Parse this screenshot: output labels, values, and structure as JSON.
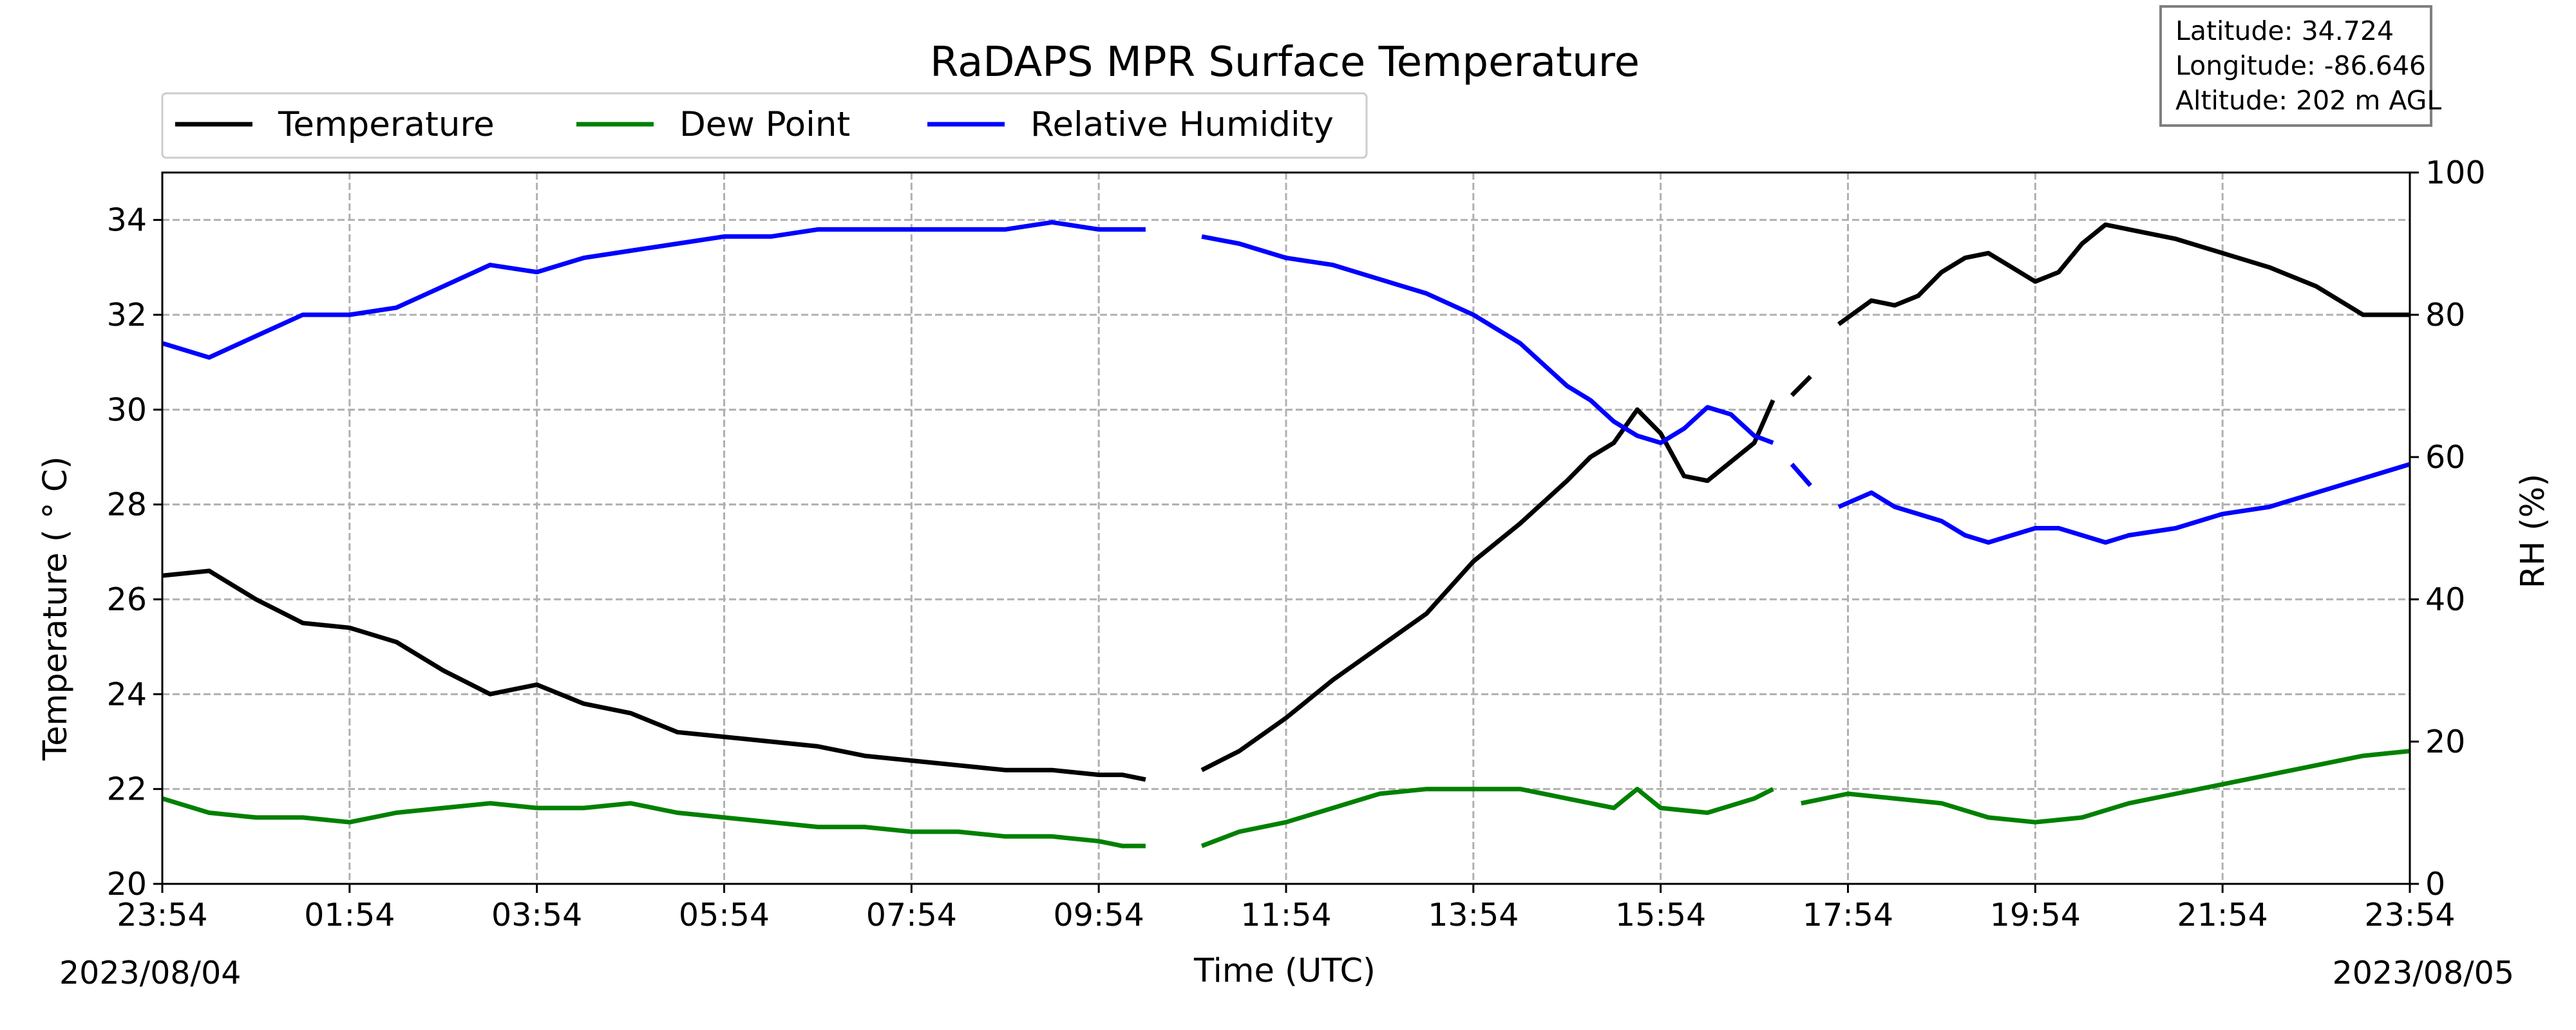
{
  "chart_data": {
    "type": "line",
    "title": "RaDAPS MPR Surface Temperature",
    "xlabel": "Time (UTC)",
    "ylabel_left": "Temperature ($^\\circ$C)",
    "ylabel_left_display": "Temperature ( ° C)",
    "ylabel_right": "RH (%)",
    "x_ticks": [
      "23:54",
      "01:54",
      "03:54",
      "05:54",
      "07:54",
      "09:54",
      "11:54",
      "13:54",
      "15:54",
      "17:54",
      "19:54",
      "21:54",
      "23:54"
    ],
    "x_range_hours": [
      0,
      24
    ],
    "start_date": "2023/08/04",
    "end_date": "2023/08/05",
    "ylim_left": [
      20,
      35
    ],
    "yticks_left": [
      20,
      22,
      24,
      26,
      28,
      30,
      32,
      34
    ],
    "ylim_right": [
      0,
      100
    ],
    "yticks_right": [
      0,
      20,
      40,
      60,
      80,
      100
    ],
    "grid": true,
    "legend_placement": "top-left",
    "info_box": {
      "latitude": "Latitude: 34.724",
      "longitude": "Longitude: -86.646",
      "altitude": "Altitude: 202 m AGL"
    },
    "series": [
      {
        "name": "Temperature",
        "axis": "left",
        "color": "#000000",
        "points": [
          [
            0,
            26.5
          ],
          [
            0.5,
            26.6
          ],
          [
            1,
            26.0
          ],
          [
            1.5,
            25.5
          ],
          [
            2,
            25.4
          ],
          [
            2.5,
            25.1
          ],
          [
            3,
            24.5
          ],
          [
            3.5,
            24.0
          ],
          [
            4,
            24.2
          ],
          [
            4.5,
            23.8
          ],
          [
            5,
            23.6
          ],
          [
            5.5,
            23.2
          ],
          [
            6,
            23.1
          ],
          [
            6.5,
            23.0
          ],
          [
            7,
            22.9
          ],
          [
            7.5,
            22.7
          ],
          [
            8,
            22.6
          ],
          [
            8.5,
            22.5
          ],
          [
            9,
            22.4
          ],
          [
            9.5,
            22.4
          ],
          [
            10,
            22.3
          ],
          [
            10.25,
            22.3
          ],
          [
            10.5,
            22.2
          ],
          null,
          [
            11.1,
            22.4
          ],
          [
            11.5,
            22.8
          ],
          [
            12,
            23.5
          ],
          [
            12.5,
            24.3
          ],
          [
            13,
            25.0
          ],
          [
            13.5,
            25.7
          ],
          [
            14,
            26.8
          ],
          [
            14.5,
            27.6
          ],
          [
            15,
            28.5
          ],
          [
            15.25,
            29.0
          ],
          [
            15.5,
            29.3
          ],
          [
            15.75,
            30.0
          ],
          [
            16,
            29.5
          ],
          [
            16.25,
            28.6
          ],
          [
            16.5,
            28.5
          ],
          [
            16.75,
            28.9
          ],
          [
            17,
            29.3
          ],
          [
            17.2,
            30.2
          ],
          null,
          [
            17.4,
            30.3
          ],
          [
            17.6,
            30.7
          ],
          null,
          [
            17.9,
            31.8
          ],
          [
            18.25,
            32.3
          ],
          [
            18.5,
            32.2
          ],
          [
            18.75,
            32.4
          ],
          [
            19,
            32.9
          ],
          [
            19.25,
            33.2
          ],
          [
            19.5,
            33.3
          ],
          [
            19.75,
            33.0
          ],
          [
            20,
            32.7
          ],
          [
            20.25,
            32.9
          ],
          [
            20.5,
            33.5
          ],
          [
            20.75,
            33.9
          ],
          [
            21,
            33.8
          ],
          [
            21.5,
            33.6
          ],
          [
            22,
            33.3
          ],
          [
            22.5,
            33.0
          ],
          [
            23,
            32.6
          ],
          [
            23.5,
            32.0
          ],
          [
            24,
            32.0
          ]
        ]
      },
      {
        "name": "Dew Point",
        "axis": "left",
        "color": "#008000",
        "points": [
          [
            0,
            21.8
          ],
          [
            0.5,
            21.5
          ],
          [
            1,
            21.4
          ],
          [
            1.5,
            21.4
          ],
          [
            2,
            21.3
          ],
          [
            2.5,
            21.5
          ],
          [
            3,
            21.6
          ],
          [
            3.5,
            21.7
          ],
          [
            4,
            21.6
          ],
          [
            4.5,
            21.6
          ],
          [
            5,
            21.7
          ],
          [
            5.5,
            21.5
          ],
          [
            6,
            21.4
          ],
          [
            6.5,
            21.3
          ],
          [
            7,
            21.2
          ],
          [
            7.5,
            21.2
          ],
          [
            8,
            21.1
          ],
          [
            8.5,
            21.1
          ],
          [
            9,
            21.0
          ],
          [
            9.5,
            21.0
          ],
          [
            10,
            20.9
          ],
          [
            10.25,
            20.8
          ],
          [
            10.5,
            20.8
          ],
          null,
          [
            11.1,
            20.8
          ],
          [
            11.5,
            21.1
          ],
          [
            12,
            21.3
          ],
          [
            12.5,
            21.6
          ],
          [
            13,
            21.9
          ],
          [
            13.5,
            22.0
          ],
          [
            14,
            22.0
          ],
          [
            14.5,
            22.0
          ],
          [
            15,
            21.8
          ],
          [
            15.5,
            21.6
          ],
          [
            15.75,
            22.0
          ],
          [
            16,
            21.6
          ],
          [
            16.5,
            21.5
          ],
          [
            17,
            21.8
          ],
          [
            17.2,
            22.0
          ],
          null,
          [
            17.5,
            21.7
          ],
          [
            18,
            21.9
          ],
          [
            18.5,
            21.8
          ],
          [
            19,
            21.7
          ],
          [
            19.5,
            21.4
          ],
          [
            20,
            21.3
          ],
          [
            20.5,
            21.4
          ],
          [
            21,
            21.7
          ],
          [
            21.5,
            21.9
          ],
          [
            22,
            22.1
          ],
          [
            22.5,
            22.3
          ],
          [
            23,
            22.5
          ],
          [
            23.5,
            22.7
          ],
          [
            24,
            22.8
          ]
        ]
      },
      {
        "name": "Relative Humidity",
        "axis": "right",
        "color": "#0000ff",
        "points": [
          [
            0,
            76
          ],
          [
            0.5,
            74
          ],
          [
            1,
            77
          ],
          [
            1.5,
            80
          ],
          [
            2,
            80
          ],
          [
            2.5,
            81
          ],
          [
            3,
            84
          ],
          [
            3.5,
            87
          ],
          [
            4,
            86
          ],
          [
            4.5,
            88
          ],
          [
            5,
            89
          ],
          [
            5.5,
            90
          ],
          [
            6,
            91
          ],
          [
            6.5,
            91
          ],
          [
            7,
            92
          ],
          [
            7.5,
            92
          ],
          [
            8,
            92
          ],
          [
            8.5,
            92
          ],
          [
            9,
            92
          ],
          [
            9.5,
            93
          ],
          [
            10,
            92
          ],
          [
            10.25,
            92
          ],
          [
            10.5,
            92
          ],
          null,
          [
            11.1,
            91
          ],
          [
            11.5,
            90
          ],
          [
            12,
            88
          ],
          [
            12.5,
            87
          ],
          [
            13,
            85
          ],
          [
            13.5,
            83
          ],
          [
            14,
            80
          ],
          [
            14.5,
            76
          ],
          [
            15,
            70
          ],
          [
            15.25,
            68
          ],
          [
            15.5,
            65
          ],
          [
            15.75,
            63
          ],
          [
            16,
            62
          ],
          [
            16.25,
            64
          ],
          [
            16.5,
            67
          ],
          [
            16.75,
            66
          ],
          [
            17,
            63
          ],
          [
            17.2,
            62
          ],
          null,
          [
            17.4,
            59
          ],
          [
            17.6,
            56
          ],
          null,
          [
            17.9,
            53
          ],
          [
            18.25,
            55
          ],
          [
            18.5,
            53
          ],
          [
            18.75,
            52
          ],
          [
            19,
            51
          ],
          [
            19.25,
            49
          ],
          [
            19.5,
            48
          ],
          [
            19.75,
            49
          ],
          [
            20,
            50
          ],
          [
            20.25,
            50
          ],
          [
            20.5,
            49
          ],
          [
            20.75,
            48
          ],
          [
            21,
            49
          ],
          [
            21.5,
            50
          ],
          [
            22,
            52
          ],
          [
            22.5,
            53
          ],
          [
            23,
            55
          ],
          [
            23.5,
            57
          ],
          [
            24,
            59
          ]
        ]
      }
    ]
  }
}
